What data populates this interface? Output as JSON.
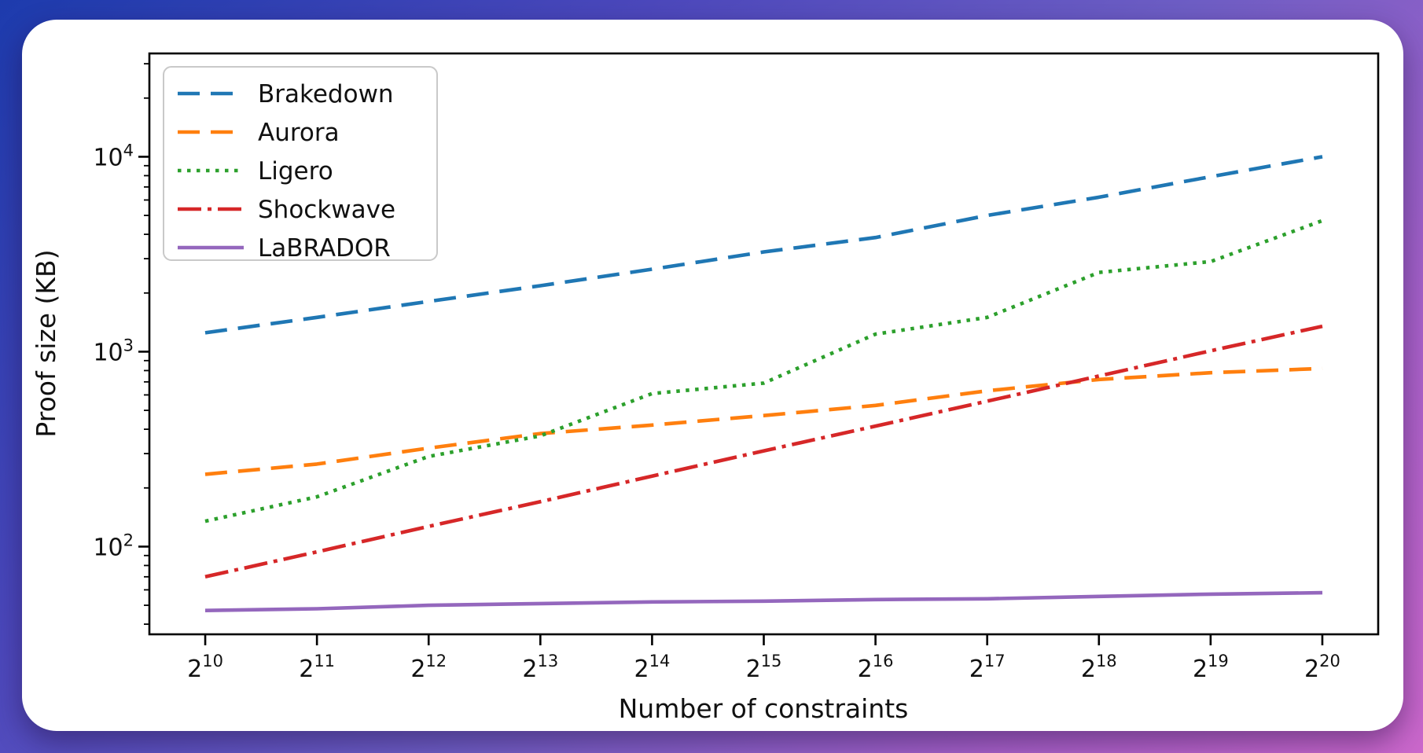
{
  "background": {
    "gradient_from": "#1d3bad",
    "gradient_mid": "#6e5ec5",
    "gradient_to": "#cb67cb"
  },
  "card": {
    "background": "#ffffff",
    "axis_color": "#000000",
    "text_color": "#111111"
  },
  "chart_data": {
    "type": "line",
    "title": "",
    "xlabel": "Number of constraints",
    "ylabel": "Proof size (KB)",
    "x_base": 2,
    "x_exponents": [
      10,
      11,
      12,
      13,
      14,
      15,
      16,
      17,
      18,
      19,
      20
    ],
    "x_tick_labels": [
      "2^10",
      "2^11",
      "2^12",
      "2^13",
      "2^14",
      "2^15",
      "2^16",
      "2^17",
      "2^18",
      "2^19",
      "2^20"
    ],
    "xlim_exponents": [
      9.5,
      20.5
    ],
    "y_scale": "log10",
    "y_tick_values": [
      100,
      1000,
      10000
    ],
    "y_tick_labels": [
      "10^2",
      "10^3",
      "10^4"
    ],
    "y_tick_exponents": [
      2,
      3,
      4
    ],
    "ylim": [
      35,
      34000
    ],
    "ylim_log10": [
      1.55,
      4.53
    ],
    "grid": false,
    "legend_position": "upper-left",
    "legend_entries": [
      "Brakedown",
      "Aurora",
      "Ligero",
      "Shockwave",
      "LaBRADOR"
    ],
    "series": [
      {
        "name": "Brakedown",
        "color": "#1f77b4",
        "line_style": "dashed",
        "values_kb": [
          1250,
          1500,
          1810,
          2180,
          2650,
          3250,
          3850,
          5000,
          6200,
          7900,
          10000
        ]
      },
      {
        "name": "Aurora",
        "color": "#ff7f0e",
        "line_style": "dashed",
        "values_kb": [
          235,
          265,
          320,
          380,
          420,
          470,
          530,
          630,
          720,
          780,
          820
        ]
      },
      {
        "name": "Ligero",
        "color": "#2ca02c",
        "line_style": "dotted",
        "values_kb": [
          135,
          180,
          290,
          370,
          610,
          690,
          1230,
          1500,
          2550,
          2900,
          4700
        ]
      },
      {
        "name": "Shockwave",
        "color": "#d62728",
        "line_style": "dashdot",
        "values_kb": [
          70,
          94,
          127,
          170,
          230,
          310,
          415,
          557,
          750,
          1010,
          1350
        ]
      },
      {
        "name": "LaBRADOR",
        "color": "#9467bd",
        "line_style": "solid",
        "values_kb": [
          47,
          48,
          50,
          51,
          52,
          52.5,
          53.5,
          54,
          55.5,
          57,
          58
        ]
      }
    ]
  }
}
